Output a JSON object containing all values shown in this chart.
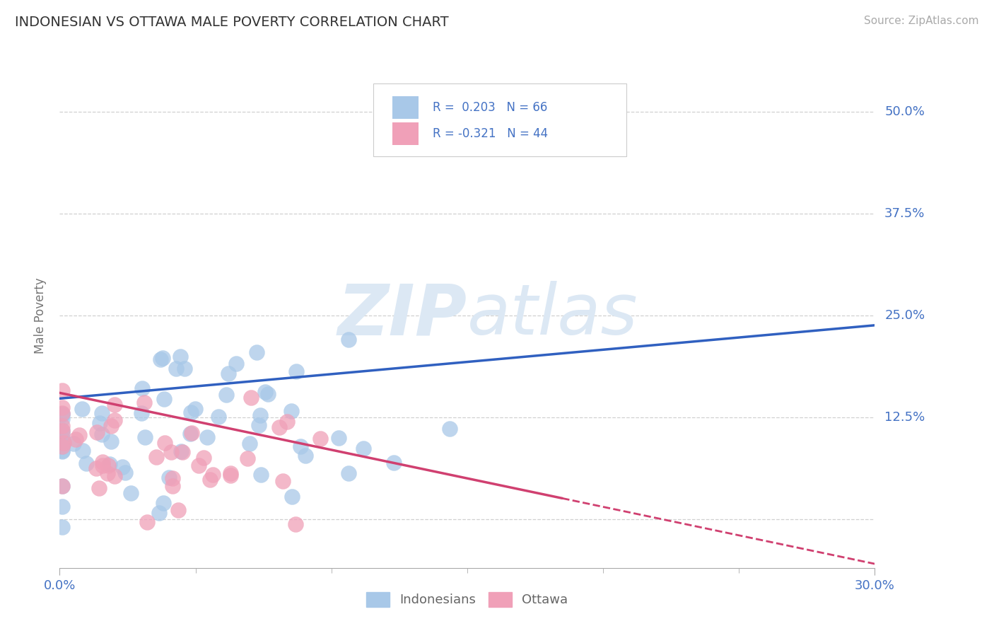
{
  "title": "INDONESIAN VS OTTAWA MALE POVERTY CORRELATION CHART",
  "source_text": "Source: ZipAtlas.com",
  "ylabel": "Male Poverty",
  "xlim": [
    0.0,
    0.3
  ],
  "ylim": [
    -0.06,
    0.56
  ],
  "xtick_positions": [
    0.0,
    0.3
  ],
  "xtick_labels": [
    "0.0%",
    "30.0%"
  ],
  "xtick_minor": [
    0.05,
    0.1,
    0.15,
    0.2,
    0.25
  ],
  "ytick_positions": [
    0.0,
    0.125,
    0.25,
    0.375,
    0.5
  ],
  "ytick_labels": [
    "",
    "12.5%",
    "25.0%",
    "37.5%",
    "50.0%"
  ],
  "grid_color": "#d0d0d0",
  "background_color": "#ffffff",
  "blue_color": "#a8c8e8",
  "pink_color": "#f0a0b8",
  "line_blue": "#3060c0",
  "line_pink": "#d04070",
  "watermark_color": "#dce8f4",
  "R_blue": 0.203,
  "N_blue": 66,
  "R_pink": -0.321,
  "N_pink": 44,
  "blue_line_y0": 0.148,
  "blue_line_y1": 0.238,
  "pink_line_y0": 0.155,
  "pink_line_y1": -0.055
}
